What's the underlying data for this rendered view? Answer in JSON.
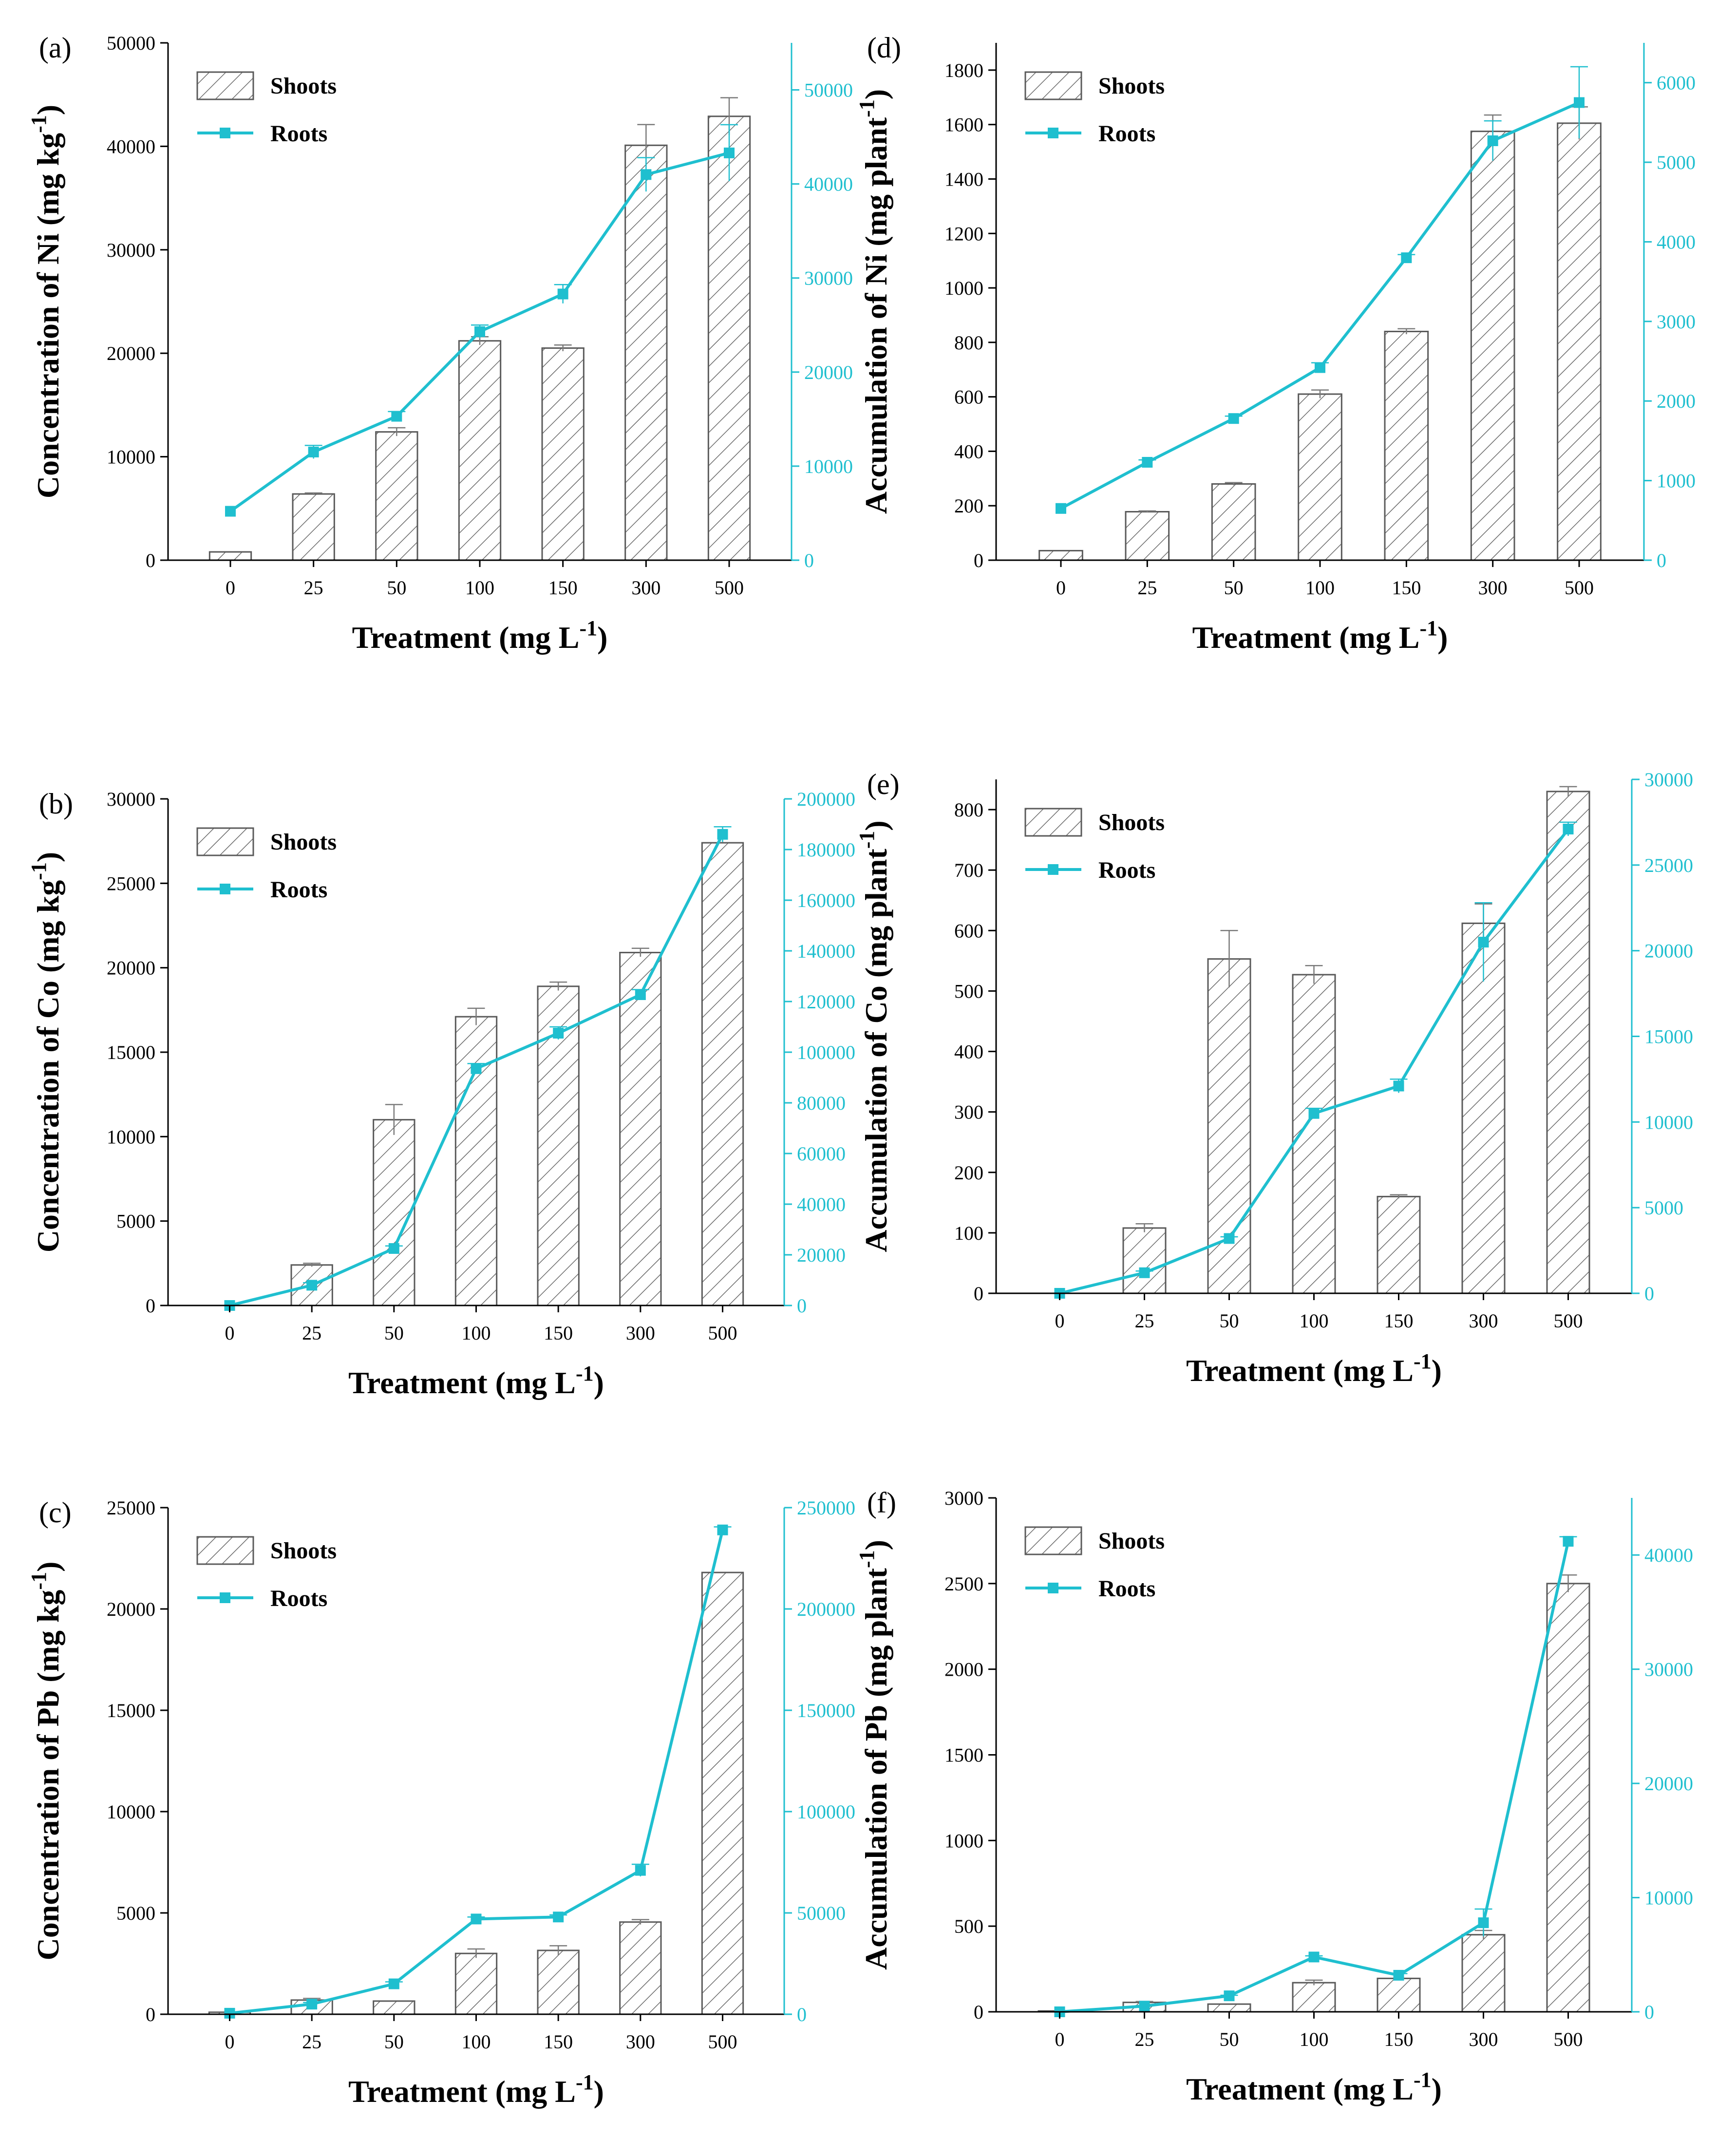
{
  "figure": {
    "colors": {
      "bar_stroke": "#5a5a5a",
      "bar_hatch": "#6a6a6a",
      "line": "#1fbfcf",
      "axis": "#000000"
    }
  },
  "chart_data": [
    {
      "id": "a",
      "panel_label": "(a)",
      "type": "bar+line",
      "categories": [
        "0",
        "25",
        "50",
        "100",
        "150",
        "300",
        "500"
      ],
      "xlabel": "Treatment (mg L",
      "xlabel_sup": "-1",
      "xlabel_end": ")",
      "ylabel": "Concentration of Ni (mg kg",
      "ylabel_sup": "-1",
      "ylabel_end": ")",
      "ylim_left": [
        0,
        50000
      ],
      "yticks_left": [
        0,
        10000,
        20000,
        30000,
        40000,
        50000
      ],
      "ylim_right": [
        0,
        55000
      ],
      "yticks_right": [
        0,
        10000,
        20000,
        30000,
        40000,
        50000
      ],
      "legend": [
        "Shoots",
        "Roots"
      ],
      "legend_position": "top-left",
      "series": [
        {
          "name": "Shoots",
          "axis": "left",
          "type": "bar",
          "values": [
            800,
            6400,
            12400,
            21200,
            20500,
            40100,
            42900
          ],
          "errors": [
            0,
            100,
            400,
            400,
            300,
            2000,
            1800
          ]
        },
        {
          "name": "Roots",
          "axis": "right",
          "type": "line",
          "values": [
            5200,
            11500,
            15300,
            24300,
            28300,
            41000,
            43300
          ],
          "errors": [
            0,
            700,
            500,
            700,
            1000,
            1800,
            3000
          ]
        }
      ]
    },
    {
      "id": "d",
      "panel_label": "(d)",
      "type": "bar+line",
      "categories": [
        "0",
        "25",
        "50",
        "100",
        "150",
        "300",
        "500"
      ],
      "xlabel": "Treatment (mg L",
      "xlabel_sup": "-1",
      "xlabel_end": ")",
      "ylabel": "Accumulation of Ni (mg plant",
      "ylabel_sup": "-1",
      "ylabel_end": ")",
      "ylim_left": [
        0,
        1900
      ],
      "yticks_left": [
        0,
        200,
        400,
        600,
        800,
        1000,
        1200,
        1400,
        1600,
        1800
      ],
      "ylim_right": [
        0,
        6500
      ],
      "yticks_right": [
        0,
        1000,
        2000,
        3000,
        4000,
        5000,
        6000
      ],
      "legend": [
        "Shoots",
        "Roots"
      ],
      "legend_position": "top-left",
      "series": [
        {
          "name": "Shoots",
          "axis": "left",
          "type": "bar",
          "values": [
            35,
            178,
            280,
            610,
            840,
            1575,
            1605
          ],
          "errors": [
            0,
            3,
            5,
            15,
            10,
            60,
            60
          ]
        },
        {
          "name": "Roots",
          "axis": "right",
          "type": "line",
          "values": [
            650,
            1230,
            1780,
            2420,
            3800,
            5270,
            5750
          ],
          "errors": [
            0,
            30,
            30,
            60,
            40,
            250,
            450
          ]
        }
      ]
    },
    {
      "id": "b",
      "panel_label": "(b)",
      "type": "bar+line",
      "categories": [
        "0",
        "25",
        "50",
        "100",
        "150",
        "300",
        "500"
      ],
      "xlabel": "Treatment (mg L",
      "xlabel_sup": "-1",
      "xlabel_end": ")",
      "ylabel": "Concentration of Co (mg kg",
      "ylabel_sup": "-1",
      "ylabel_end": ")",
      "ylim_left": [
        0,
        30000
      ],
      "yticks_left": [
        0,
        5000,
        10000,
        15000,
        20000,
        25000,
        30000
      ],
      "ylim_right": [
        0,
        200000
      ],
      "yticks_right": [
        0,
        20000,
        40000,
        60000,
        80000,
        100000,
        120000,
        140000,
        160000,
        180000,
        200000
      ],
      "legend": [
        "Shoots",
        "Roots"
      ],
      "legend_position": "top-left",
      "series": [
        {
          "name": "Shoots",
          "axis": "left",
          "type": "bar",
          "values": [
            0,
            2400,
            11000,
            17100,
            18900,
            20900,
            27400
          ],
          "errors": [
            0,
            100,
            900,
            500,
            250,
            250,
            0
          ]
        },
        {
          "name": "Roots",
          "axis": "right",
          "type": "line",
          "values": [
            0,
            8000,
            22500,
            93500,
            107500,
            122700,
            186000
          ],
          "errors": [
            0,
            1000,
            1000,
            2000,
            2500,
            2000,
            3000
          ]
        }
      ]
    },
    {
      "id": "e",
      "panel_label": "(e)",
      "type": "bar+line",
      "categories": [
        "0",
        "25",
        "50",
        "100",
        "150",
        "300",
        "500"
      ],
      "xlabel": "Treatment (mg L",
      "xlabel_sup": "-1",
      "xlabel_end": ")",
      "ylabel": "Accumulation of Co (mg plant",
      "ylabel_sup": "-1",
      "ylabel_end": ")",
      "ylim_left": [
        0,
        850
      ],
      "yticks_left": [
        0,
        100,
        200,
        300,
        400,
        500,
        600,
        700,
        800
      ],
      "ylim_right": [
        0,
        30000
      ],
      "yticks_right": [
        0,
        5000,
        10000,
        15000,
        20000,
        25000,
        30000
      ],
      "legend": [
        "Shoots",
        "Roots"
      ],
      "legend_position": "top-left",
      "series": [
        {
          "name": "Shoots",
          "axis": "left",
          "type": "bar",
          "values": [
            0,
            108,
            553,
            527,
            160,
            612,
            830
          ],
          "errors": [
            0,
            7,
            47,
            15,
            3,
            32,
            8
          ]
        },
        {
          "name": "Roots",
          "axis": "right",
          "type": "line",
          "values": [
            0,
            1200,
            3200,
            10500,
            12100,
            20500,
            27100
          ],
          "errors": [
            0,
            100,
            100,
            300,
            400,
            2300,
            400
          ]
        }
      ]
    },
    {
      "id": "c",
      "panel_label": "(c)",
      "type": "bar+line",
      "categories": [
        "0",
        "25",
        "50",
        "100",
        "150",
        "300",
        "500"
      ],
      "xlabel": "Treatment (mg L",
      "xlabel_sup": "-1",
      "xlabel_end": ")",
      "ylabel": "Concentration of Pb (mg kg",
      "ylabel_sup": "-1",
      "ylabel_end": ")",
      "ylim_left": [
        0,
        25000
      ],
      "yticks_left": [
        0,
        5000,
        10000,
        15000,
        20000,
        25000
      ],
      "ylim_right": [
        0,
        250000
      ],
      "yticks_right": [
        0,
        50000,
        100000,
        150000,
        200000,
        250000
      ],
      "legend": [
        "Shoots",
        "Roots"
      ],
      "legend_position": "top-left",
      "series": [
        {
          "name": "Shoots",
          "axis": "left",
          "type": "bar",
          "values": [
            100,
            700,
            650,
            3000,
            3150,
            4550,
            21800
          ],
          "errors": [
            0,
            80,
            0,
            220,
            230,
            120,
            0
          ]
        },
        {
          "name": "Roots",
          "axis": "right",
          "type": "line",
          "values": [
            500,
            5000,
            15000,
            47000,
            48000,
            71000,
            239000
          ],
          "errors": [
            0,
            800,
            1000,
            1000,
            1000,
            3000,
            1500
          ]
        }
      ]
    },
    {
      "id": "f",
      "panel_label": "(f)",
      "type": "bar+line",
      "categories": [
        "0",
        "25",
        "50",
        "100",
        "150",
        "300",
        "500"
      ],
      "xlabel": "Treatment (mg L",
      "xlabel_sup": "-1",
      "xlabel_end": ")",
      "ylabel": "Accumulation of Pb (mg plant",
      "ylabel_sup": "-1",
      "ylabel_end": ")",
      "ylim_left": [
        0,
        3000
      ],
      "yticks_left": [
        0,
        500,
        1000,
        1500,
        2000,
        2500,
        3000
      ],
      "ylim_right": [
        0,
        45000
      ],
      "yticks_right": [
        0,
        10000,
        20000,
        30000,
        40000
      ],
      "legend": [
        "Shoots",
        "Roots"
      ],
      "legend_position": "top-left",
      "series": [
        {
          "name": "Shoots",
          "axis": "left",
          "type": "bar",
          "values": [
            5,
            55,
            45,
            170,
            195,
            450,
            2500
          ],
          "errors": [
            0,
            5,
            0,
            15,
            0,
            25,
            50
          ]
        },
        {
          "name": "Roots",
          "axis": "right",
          "type": "line",
          "values": [
            0,
            500,
            1400,
            4800,
            3200,
            7800,
            41200
          ],
          "errors": [
            0,
            50,
            50,
            100,
            150,
            1200,
            400
          ]
        }
      ]
    }
  ]
}
